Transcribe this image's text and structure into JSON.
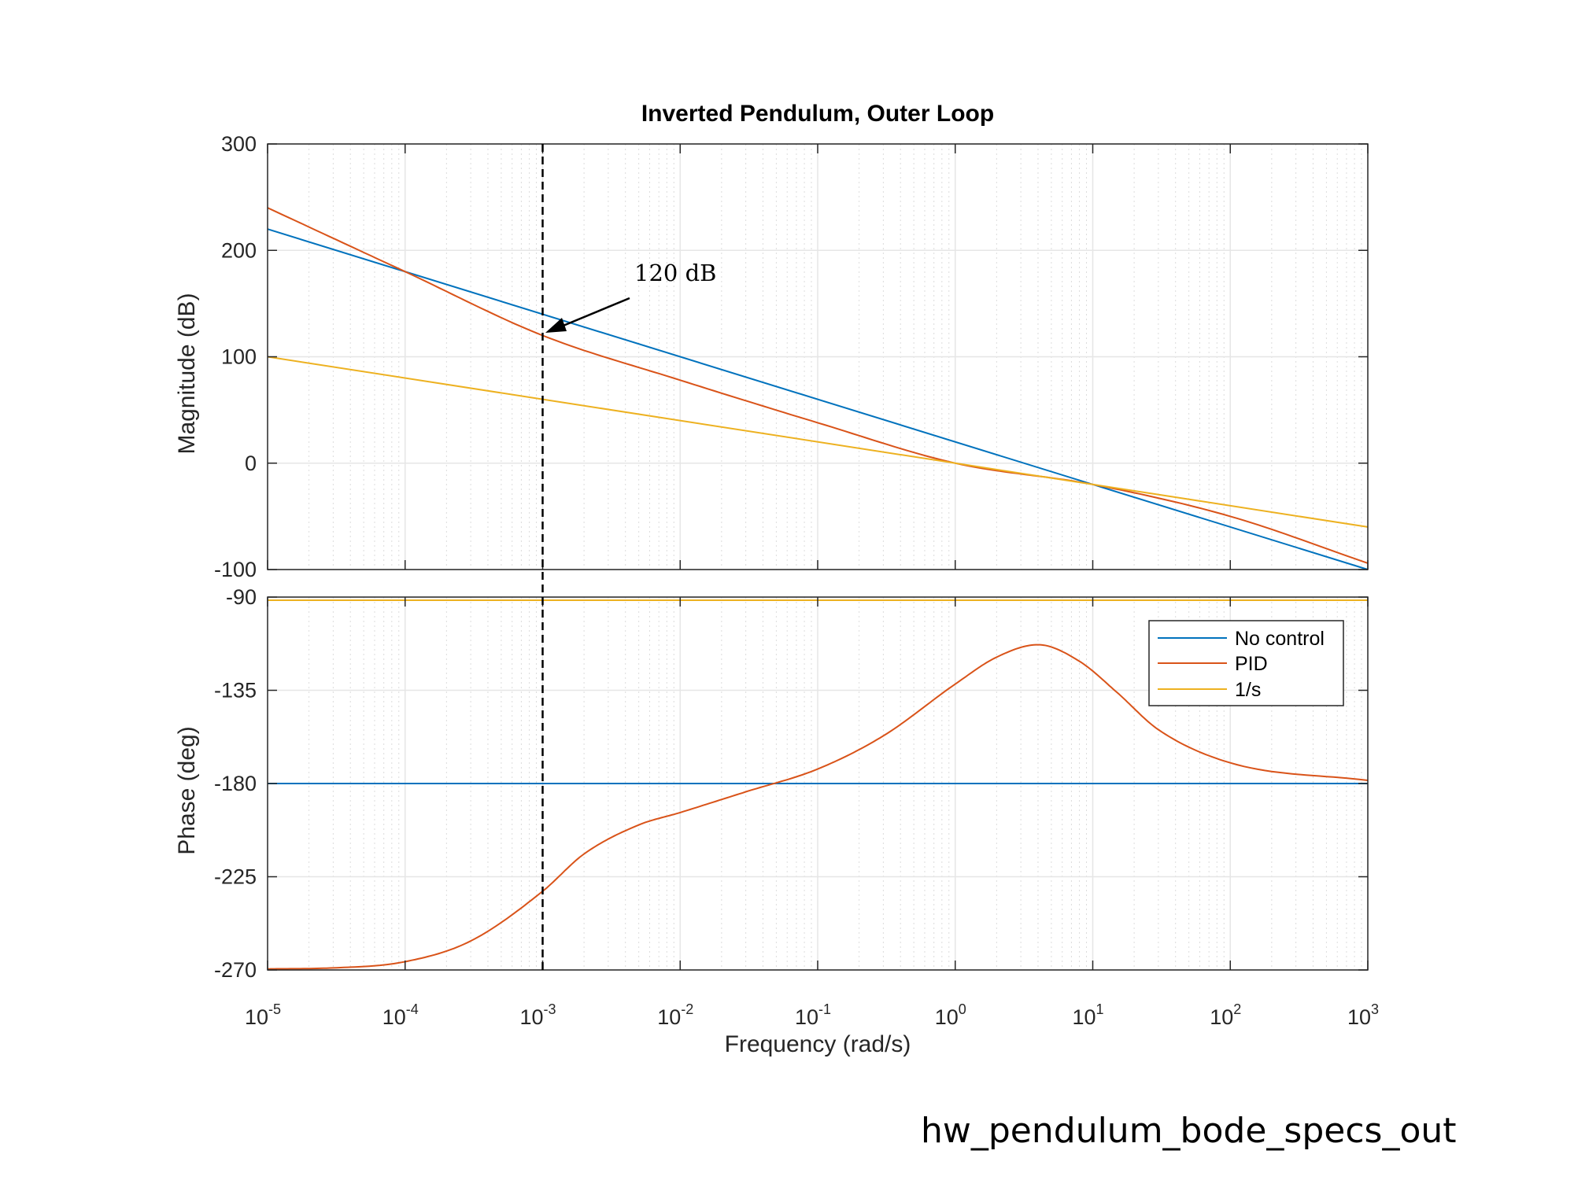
{
  "caption": "hw_pendulum_bode_specs_out",
  "chart_data": {
    "type": "line",
    "title": "Inverted Pendulum, Outer Loop",
    "xlabel": "Frequency  (rad/s)",
    "xscale": "log",
    "xlim": [
      1e-05,
      1000
    ],
    "x_tick_exponents": [
      "-5",
      "-4",
      "-3",
      "-2",
      "-1",
      "0",
      "1",
      "2",
      "3"
    ],
    "grid": true,
    "legend": {
      "placement": "top-right of phase axes",
      "entries": [
        "No control",
        "PID",
        "1/s"
      ]
    },
    "colors": {
      "No control": "#0072BD",
      "PID": "#D95319",
      "1/s": "#EDB120"
    },
    "magnitude": {
      "ylabel": "Magnitude (dB)",
      "ylim": [
        -100,
        300
      ],
      "yticks": [
        "300",
        "200",
        "100",
        "0",
        "-100"
      ],
      "series": [
        {
          "name": "No control",
          "x": [
            1e-05,
            1000
          ],
          "y": [
            220,
            -100
          ]
        },
        {
          "name": "PID",
          "x": [
            1e-05,
            0.0001,
            0.001,
            0.01,
            0.1,
            1,
            10,
            100,
            1000
          ],
          "y": [
            240,
            180,
            120,
            78,
            38,
            0,
            -20,
            -50,
            -94
          ]
        },
        {
          "name": "1/s",
          "x": [
            1e-05,
            1000
          ],
          "y": [
            100,
            -60
          ]
        }
      ]
    },
    "phase": {
      "ylabel": "Phase (deg)",
      "ylim": [
        -270,
        -90
      ],
      "yticks": [
        "-90",
        "-135",
        "-180",
        "-225",
        "-270"
      ],
      "series": [
        {
          "name": "No control",
          "x": [
            1e-05,
            1000
          ],
          "y": [
            -180,
            -180
          ]
        },
        {
          "name": "PID",
          "x": [
            1e-05,
            3e-05,
            0.0001,
            0.0003,
            0.001,
            0.002,
            0.005,
            0.01,
            0.03,
            0.1,
            0.3,
            1,
            2,
            4,
            8,
            15,
            30,
            100,
            1000
          ],
          "y": [
            -269.5,
            -269,
            -266,
            -256,
            -232,
            -214,
            -200,
            -194,
            -184,
            -173,
            -157,
            -132,
            -119,
            -113,
            -121,
            -136,
            -154,
            -170,
            -178.5
          ]
        },
        {
          "name": "1/s",
          "x": [
            1e-05,
            1000
          ],
          "y": [
            -91.5,
            -91.5
          ]
        }
      ]
    },
    "marker": {
      "x": 0.001,
      "style": "dashed vertical line"
    },
    "annotation": {
      "text": "120 dB",
      "points_to": {
        "x": 0.001,
        "y": 120
      }
    }
  }
}
